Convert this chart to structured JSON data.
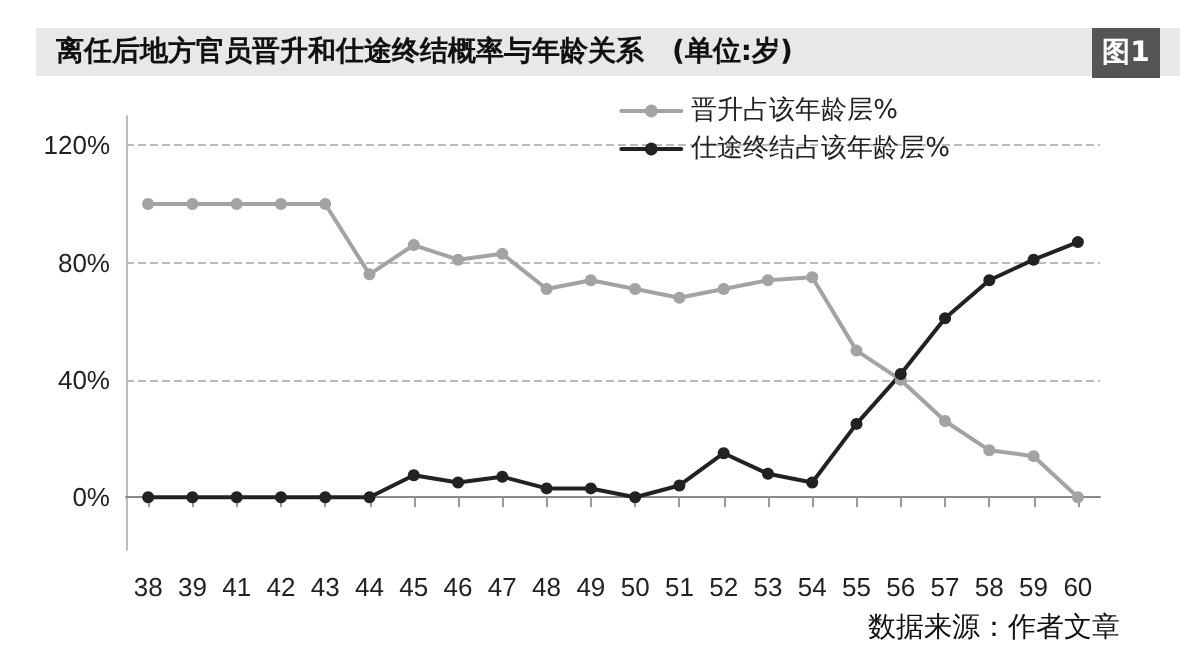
{
  "chart_data": {
    "type": "line",
    "title": "离任后地方官员晋升和仕途终结概率与年龄关系　(单位:岁)",
    "annotations": [
      "图1",
      "数据来源：作者文章"
    ],
    "categories": [
      "38",
      "39",
      "41",
      "42",
      "43",
      "44",
      "45",
      "46",
      "47",
      "48",
      "49",
      "50",
      "51",
      "52",
      "53",
      "54",
      "55",
      "56",
      "57",
      "58",
      "59",
      "60"
    ],
    "series": [
      {
        "name": "晋升占该年龄层%",
        "color": "#a3a3a3",
        "values": [
          100,
          100,
          100,
          100,
          100,
          76,
          86,
          81,
          83,
          71,
          74,
          71,
          68,
          71,
          74,
          75,
          50,
          40,
          26,
          16,
          14,
          0
        ]
      },
      {
        "name": "仕途终结占该年龄层%",
        "color": "#222222",
        "values": [
          0,
          0,
          0,
          0,
          0,
          0,
          7.5,
          5,
          7,
          3,
          3,
          0,
          4,
          15,
          8,
          5,
          25,
          42,
          61,
          74,
          81,
          87
        ]
      }
    ],
    "ylim": [
      -18,
      130
    ],
    "yticks": [
      {
        "value": 0,
        "label": "0%"
      },
      {
        "value": 40,
        "label": "40%"
      },
      {
        "value": 80,
        "label": "80%"
      },
      {
        "value": 120,
        "label": "120%"
      }
    ],
    "grid": "y",
    "legend": "top right",
    "marker": "circle",
    "line_style": "solid"
  }
}
